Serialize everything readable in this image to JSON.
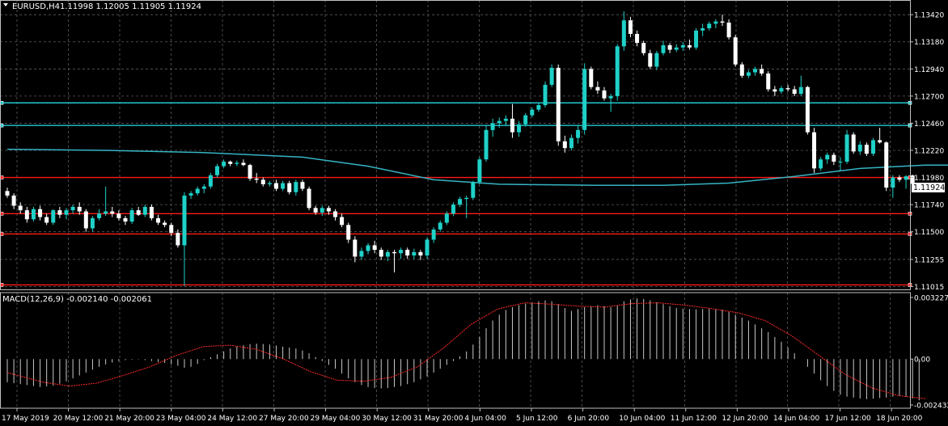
{
  "colors": {
    "background": "#000000",
    "grid": "#5c5c5c",
    "frame": "#c0c0c0",
    "text": "#ffffff",
    "bull_candle": "#1fd1c8",
    "bear_candle": "#ffffff",
    "hline_red": "#ff1a1a",
    "hline_cyan": "#20c8d0",
    "moving_average": "#36b4c4",
    "macd_histogram": "#c8c8c8",
    "macd_signal": "#ff2a2a",
    "price_badge_bg": "#ffffff",
    "price_badge_text": "#000000"
  },
  "chart_data": [
    {
      "type": "candlestick",
      "symbol_label": "EURUSD,H4",
      "ohlc_label": "1.11998 1.12005 1.11905 1.11924",
      "current_price": "1.11924",
      "ylim": [
        1.1099,
        1.1355
      ],
      "y_ticks": [
        "1.13420",
        "1.13180",
        "1.12940",
        "1.12700",
        "1.12460",
        "1.12220",
        "1.11980",
        "1.11740",
        "1.11500",
        "1.11255",
        "1.11015"
      ],
      "x_labels": [
        "17 May 2019",
        "20 May 12:00",
        "21 May 20:00",
        "23 May 04:00",
        "24 May 12:00",
        "27 May 20:00",
        "29 May 04:00",
        "30 May 12:00",
        "31 May 20:00",
        "4 Jun 04:00",
        "5 Jun 12:00",
        "6 Jun 20:00",
        "10 Jun 04:00",
        "11 Jun 12:00",
        "12 Jun 20:00",
        "14 Jun 04:00",
        "17 Jun 12:00",
        "18 Jun 20:00"
      ],
      "horizontal_lines": [
        {
          "level": 1.1264,
          "color": "cyan"
        },
        {
          "level": 1.1244,
          "color": "cyan"
        },
        {
          "level": 1.1198,
          "color": "red"
        },
        {
          "level": 1.1166,
          "color": "red"
        },
        {
          "level": 1.1148,
          "color": "red"
        },
        {
          "level": 1.1103,
          "color": "red"
        }
      ],
      "moving_average": [
        [
          0,
          1.1223
        ],
        [
          15,
          1.1222
        ],
        [
          30,
          1.122
        ],
        [
          45,
          1.1216
        ],
        [
          55,
          1.1208
        ],
        [
          65,
          1.1196
        ],
        [
          75,
          1.1192
        ],
        [
          90,
          1.1191
        ],
        [
          100,
          1.1191
        ],
        [
          110,
          1.1193
        ],
        [
          120,
          1.1199
        ],
        [
          130,
          1.1206
        ],
        [
          140,
          1.1209
        ],
        [
          155,
          1.1209
        ]
      ],
      "candles": [
        [
          1.1186,
          1.1189,
          1.118,
          1.1182
        ],
        [
          1.1182,
          1.1184,
          1.117,
          1.1173
        ],
        [
          1.1173,
          1.1176,
          1.1166,
          1.1169
        ],
        [
          1.1169,
          1.1172,
          1.1158,
          1.1161
        ],
        [
          1.1161,
          1.1172,
          1.1159,
          1.117
        ],
        [
          1.117,
          1.1173,
          1.116,
          1.1163
        ],
        [
          1.1163,
          1.1166,
          1.1156,
          1.1158
        ],
        [
          1.1158,
          1.117,
          1.1156,
          1.1169
        ],
        [
          1.1169,
          1.1172,
          1.1162,
          1.1165
        ],
        [
          1.1165,
          1.1171,
          1.1161,
          1.1169
        ],
        [
          1.1169,
          1.1174,
          1.1166,
          1.1172
        ],
        [
          1.1172,
          1.1176,
          1.1165,
          1.1168
        ],
        [
          1.1168,
          1.117,
          1.115,
          1.1153
        ],
        [
          1.1153,
          1.1164,
          1.115,
          1.1162
        ],
        [
          1.1162,
          1.117,
          1.116,
          1.1166
        ],
        [
          1.1166,
          1.119,
          1.1164,
          1.1168
        ],
        [
          1.1168,
          1.1172,
          1.1163,
          1.1166
        ],
        [
          1.1166,
          1.1169,
          1.116,
          1.1162
        ],
        [
          1.1162,
          1.1164,
          1.1156,
          1.1159
        ],
        [
          1.1159,
          1.1171,
          1.1157,
          1.1169
        ],
        [
          1.1169,
          1.1172,
          1.1164,
          1.1165
        ],
        [
          1.1165,
          1.1174,
          1.1163,
          1.1172
        ],
        [
          1.1172,
          1.1174,
          1.116,
          1.1162
        ],
        [
          1.1162,
          1.1165,
          1.1156,
          1.1158
        ],
        [
          1.1158,
          1.116,
          1.1154,
          1.1156
        ],
        [
          1.1156,
          1.1158,
          1.1146,
          1.1149
        ],
        [
          1.1149,
          1.1152,
          1.1136,
          1.1138
        ],
        [
          1.1138,
          1.1185,
          1.1102,
          1.1182
        ],
        [
          1.1182,
          1.1186,
          1.1179,
          1.1184
        ],
        [
          1.1184,
          1.119,
          1.1182,
          1.1188
        ],
        [
          1.1188,
          1.1192,
          1.1184,
          1.119
        ],
        [
          1.119,
          1.1202,
          1.1188,
          1.12
        ],
        [
          1.12,
          1.121,
          1.1198,
          1.1208
        ],
        [
          1.1208,
          1.1214,
          1.1206,
          1.1212
        ],
        [
          1.1212,
          1.1213,
          1.1208,
          1.121
        ],
        [
          1.121,
          1.1213,
          1.1208,
          1.1211
        ],
        [
          1.1211,
          1.1214,
          1.1208,
          1.1209
        ],
        [
          1.1209,
          1.121,
          1.1195,
          1.1197
        ],
        [
          1.1197,
          1.1202,
          1.1193,
          1.1196
        ],
        [
          1.1196,
          1.1198,
          1.119,
          1.1192
        ],
        [
          1.1192,
          1.1195,
          1.119,
          1.1193
        ],
        [
          1.1193,
          1.1196,
          1.1186,
          1.1188
        ],
        [
          1.1188,
          1.1195,
          1.1186,
          1.1193
        ],
        [
          1.1193,
          1.1195,
          1.1183,
          1.1185
        ],
        [
          1.1185,
          1.1196,
          1.1182,
          1.1194
        ],
        [
          1.1194,
          1.1196,
          1.1186,
          1.1188
        ],
        [
          1.1188,
          1.119,
          1.1169,
          1.1171
        ],
        [
          1.1171,
          1.1173,
          1.1165,
          1.1167
        ],
        [
          1.1167,
          1.1173,
          1.1164,
          1.1171
        ],
        [
          1.1171,
          1.1173,
          1.1165,
          1.1168
        ],
        [
          1.1168,
          1.117,
          1.116,
          1.1163
        ],
        [
          1.1163,
          1.1166,
          1.1154,
          1.1156
        ],
        [
          1.1156,
          1.1158,
          1.114,
          1.1143
        ],
        [
          1.1143,
          1.1146,
          1.1123,
          1.1128
        ],
        [
          1.1128,
          1.1136,
          1.1125,
          1.1133
        ],
        [
          1.1133,
          1.114,
          1.113,
          1.1138
        ],
        [
          1.1138,
          1.1142,
          1.1131,
          1.1134
        ],
        [
          1.1134,
          1.1136,
          1.1125,
          1.1128
        ],
        [
          1.1128,
          1.1134,
          1.1124,
          1.1132
        ],
        [
          1.1132,
          1.1134,
          1.1114,
          1.1131
        ],
        [
          1.1131,
          1.1136,
          1.1126,
          1.1134
        ],
        [
          1.1134,
          1.1136,
          1.1126,
          1.1129
        ],
        [
          1.1129,
          1.1135,
          1.1126,
          1.1132
        ],
        [
          1.1132,
          1.1134,
          1.1125,
          1.1129
        ],
        [
          1.1129,
          1.1145,
          1.1126,
          1.1143
        ],
        [
          1.1143,
          1.1154,
          1.114,
          1.1152
        ],
        [
          1.1152,
          1.116,
          1.115,
          1.1158
        ],
        [
          1.1158,
          1.1168,
          1.1156,
          1.1166
        ],
        [
          1.1166,
          1.1176,
          1.1164,
          1.1174
        ],
        [
          1.1174,
          1.1181,
          1.1172,
          1.1179
        ],
        [
          1.1179,
          1.1182,
          1.1162,
          1.118
        ],
        [
          1.118,
          1.1195,
          1.1178,
          1.1194
        ],
        [
          1.1194,
          1.1216,
          1.1192,
          1.1214
        ],
        [
          1.1214,
          1.1244,
          1.1212,
          1.124
        ],
        [
          1.124,
          1.125,
          1.1234,
          1.1246
        ],
        [
          1.1246,
          1.1251,
          1.1242,
          1.1248
        ],
        [
          1.1248,
          1.1253,
          1.1244,
          1.125
        ],
        [
          1.125,
          1.1263,
          1.1233,
          1.1238
        ],
        [
          1.1238,
          1.1248,
          1.1234,
          1.1245
        ],
        [
          1.1245,
          1.1255,
          1.1243,
          1.1253
        ],
        [
          1.1253,
          1.126,
          1.1251,
          1.1258
        ],
        [
          1.1258,
          1.1264,
          1.1256,
          1.1262
        ],
        [
          1.1262,
          1.1283,
          1.126,
          1.128
        ],
        [
          1.128,
          1.1298,
          1.1278,
          1.1295
        ],
        [
          1.1295,
          1.1298,
          1.1226,
          1.123
        ],
        [
          1.123,
          1.1235,
          1.122,
          1.1224
        ],
        [
          1.1224,
          1.1236,
          1.1222,
          1.1233
        ],
        [
          1.1233,
          1.1244,
          1.1228,
          1.124
        ],
        [
          1.124,
          1.1299,
          1.1236,
          1.1294
        ],
        [
          1.1294,
          1.1296,
          1.1276,
          1.1278
        ],
        [
          1.1278,
          1.1283,
          1.1272,
          1.1275
        ],
        [
          1.1275,
          1.1278,
          1.1266,
          1.1268
        ],
        [
          1.1268,
          1.1272,
          1.1256,
          1.127
        ],
        [
          1.127,
          1.1316,
          1.1266,
          1.1314
        ],
        [
          1.1314,
          1.1345,
          1.131,
          1.1337
        ],
        [
          1.1337,
          1.134,
          1.1322,
          1.1325
        ],
        [
          1.1325,
          1.1328,
          1.1314,
          1.1317
        ],
        [
          1.1317,
          1.1319,
          1.1306,
          1.1308
        ],
        [
          1.1308,
          1.1311,
          1.1294,
          1.1296
        ],
        [
          1.1296,
          1.131,
          1.1293,
          1.1308
        ],
        [
          1.1308,
          1.1319,
          1.1306,
          1.1315
        ],
        [
          1.1315,
          1.1317,
          1.1308,
          1.1311
        ],
        [
          1.1311,
          1.1316,
          1.1309,
          1.1313
        ],
        [
          1.1313,
          1.1318,
          1.131,
          1.1315
        ],
        [
          1.1315,
          1.132,
          1.1311,
          1.1313
        ],
        [
          1.1313,
          1.133,
          1.1311,
          1.1328
        ],
        [
          1.1328,
          1.1334,
          1.1323,
          1.133
        ],
        [
          1.133,
          1.1336,
          1.1328,
          1.1334
        ],
        [
          1.1334,
          1.1338,
          1.133,
          1.1336
        ],
        [
          1.1336,
          1.1342,
          1.1332,
          1.1335
        ],
        [
          1.1335,
          1.1338,
          1.132,
          1.1322
        ],
        [
          1.1322,
          1.1324,
          1.1296,
          1.1298
        ],
        [
          1.1298,
          1.13,
          1.1286,
          1.1288
        ],
        [
          1.1288,
          1.1293,
          1.1286,
          1.1291
        ],
        [
          1.1291,
          1.1296,
          1.1288,
          1.1294
        ],
        [
          1.1294,
          1.1298,
          1.1288,
          1.129
        ],
        [
          1.129,
          1.1292,
          1.1274,
          1.1276
        ],
        [
          1.1276,
          1.1279,
          1.127,
          1.1274
        ],
        [
          1.1274,
          1.1279,
          1.1272,
          1.1277
        ],
        [
          1.1277,
          1.128,
          1.1274,
          1.1276
        ],
        [
          1.1276,
          1.1279,
          1.127,
          1.1272
        ],
        [
          1.1272,
          1.1288,
          1.127,
          1.1278
        ],
        [
          1.1278,
          1.1279,
          1.1236,
          1.1238
        ],
        [
          1.1238,
          1.1242,
          1.1202,
          1.1206
        ],
        [
          1.1206,
          1.1216,
          1.1204,
          1.1214
        ],
        [
          1.1214,
          1.122,
          1.121,
          1.1218
        ],
        [
          1.1218,
          1.122,
          1.1209,
          1.1212
        ],
        [
          1.1212,
          1.1216,
          1.1204,
          1.1212
        ],
        [
          1.1212,
          1.124,
          1.121,
          1.1236
        ],
        [
          1.1236,
          1.1238,
          1.1219,
          1.1221
        ],
        [
          1.1221,
          1.123,
          1.1218,
          1.1227
        ],
        [
          1.1227,
          1.1229,
          1.1217,
          1.1219
        ],
        [
          1.1219,
          1.1233,
          1.1217,
          1.1231
        ],
        [
          1.1231,
          1.1242,
          1.1228,
          1.1229
        ],
        [
          1.1229,
          1.123,
          1.1186,
          1.1189
        ],
        [
          1.1189,
          1.12,
          1.118,
          1.1198
        ],
        [
          1.1198,
          1.12,
          1.1194,
          1.1196
        ],
        [
          1.1196,
          1.12,
          1.1188,
          1.1199
        ],
        [
          1.11998,
          1.12005,
          1.11905,
          1.11924
        ]
      ]
    },
    {
      "type": "macd",
      "label": "MACD(12,26,9) -0.002140 -0.002061",
      "ylim": [
        -0.00255,
        0.00345
      ],
      "y_ticks": [
        "0.003227",
        "0.00",
        "-0.002432"
      ],
      "histogram": [
        -0.0012,
        -0.00125,
        -0.0013,
        -0.00135,
        -0.0014,
        -0.00145,
        -0.00142,
        -0.00138,
        -0.00128,
        -0.00115,
        -0.001,
        -0.00085,
        -0.0007,
        -0.00055,
        -0.0004,
        -0.00028,
        -0.00018,
        -0.0001,
        -5e-05,
        -3e-05,
        -2e-05,
        -5e-05,
        -0.0001,
        -0.00015,
        -0.0002,
        -0.00028,
        -0.00035,
        -0.00045,
        -0.0004,
        -0.00025,
        -5e-05,
        0.0001,
        0.00025,
        0.0004,
        0.00055,
        0.00065,
        0.00072,
        0.00078,
        0.0008,
        0.00078,
        0.00075,
        0.0007,
        0.00065,
        0.0006,
        0.00055,
        0.00045,
        0.0003,
        0.0001,
        -0.0001,
        -0.0003,
        -0.0005,
        -0.00075,
        -0.001,
        -0.0012,
        -0.00135,
        -0.00145,
        -0.0015,
        -0.00152,
        -0.0015,
        -0.00145,
        -0.0014,
        -0.0013,
        -0.0012,
        -0.00105,
        -0.0009,
        -0.0007,
        -0.0005,
        -0.0003,
        -0.0001,
        0.00015,
        0.0004,
        0.00075,
        0.00115,
        0.0016,
        0.002,
        0.0023,
        0.00255,
        0.0027,
        0.0028,
        0.00288,
        0.00295,
        0.003,
        0.00305,
        0.003,
        0.00285,
        0.00265,
        0.0025,
        0.0026,
        0.0027,
        0.00275,
        0.0028,
        0.00275,
        0.0027,
        0.0028,
        0.003,
        0.0031,
        0.00315,
        0.00312,
        0.00305,
        0.00295,
        0.00285,
        0.00275,
        0.00265,
        0.00262,
        0.0026,
        0.00258,
        0.0026,
        0.00262,
        0.0026,
        0.00255,
        0.00245,
        0.0023,
        0.00215,
        0.002,
        0.0018,
        0.0016,
        0.0014,
        0.00115,
        0.0009,
        0.0006,
        0.0003,
        0.0,
        -0.0004,
        -0.00075,
        -0.0011,
        -0.0014,
        -0.00165,
        -0.00185,
        -0.00195,
        -0.002,
        -0.00205,
        -0.00208,
        -0.00205,
        -0.00202,
        -0.002,
        -0.00195,
        -0.0019,
        -0.00195,
        -0.00205,
        -0.00214
      ],
      "signal": [
        [
          0,
          -0.0007
        ],
        [
          8,
          -0.0012
        ],
        [
          14,
          -0.0014
        ],
        [
          20,
          -0.00125
        ],
        [
          26,
          -0.00085
        ],
        [
          32,
          -0.0004
        ],
        [
          38,
          0.0002
        ],
        [
          44,
          0.00065
        ],
        [
          50,
          0.00072
        ],
        [
          56,
          0.0005
        ],
        [
          62,
          0.0
        ],
        [
          68,
          -0.00065
        ],
        [
          74,
          -0.0011
        ],
        [
          80,
          -0.00115
        ],
        [
          86,
          -0.00095
        ],
        [
          92,
          -0.0004
        ],
        [
          98,
          0.0006
        ],
        [
          104,
          0.0018
        ],
        [
          110,
          0.0026
        ],
        [
          116,
          0.00292
        ],
        [
          122,
          0.00285
        ],
        [
          128,
          0.00275
        ],
        [
          134,
          0.0027
        ],
        [
          140,
          0.00288
        ],
        [
          146,
          0.00292
        ],
        [
          152,
          0.0028
        ],
        [
          158,
          0.00262
        ],
        [
          164,
          0.0024
        ],
        [
          170,
          0.002
        ],
        [
          176,
          0.0012
        ],
        [
          182,
          0.0002
        ],
        [
          188,
          -0.0008
        ],
        [
          194,
          -0.0015
        ],
        [
          200,
          -0.0019
        ],
        [
          206,
          -0.00206
        ]
      ]
    }
  ]
}
